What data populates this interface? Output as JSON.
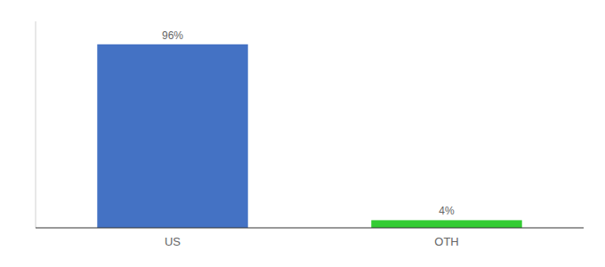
{
  "chart_data": {
    "type": "bar",
    "categories": [
      "US",
      "OTH"
    ],
    "values": [
      96,
      4
    ],
    "value_labels": [
      "96%",
      "4%"
    ],
    "colors": [
      "#4472c4",
      "#33cc33"
    ],
    "ylim": [
      0,
      108
    ],
    "data_labels": true,
    "tick_labels": "x",
    "grid": false
  }
}
